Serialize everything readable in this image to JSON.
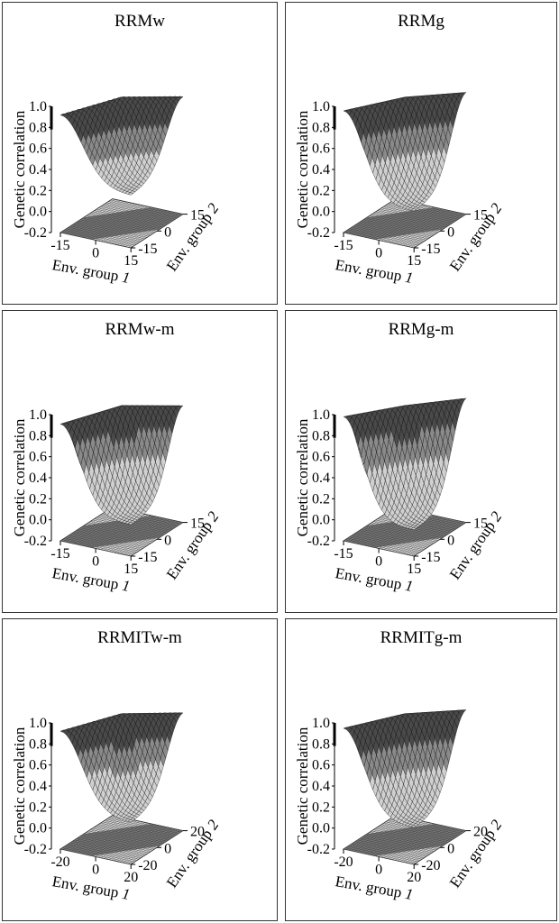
{
  "axis_labels": {
    "y": "Genetic correlation",
    "x1": "Env. group",
    "x1_num": "1",
    "x2": "Env. group",
    "x2_num": "2"
  },
  "chart_data": [
    {
      "type": "surface",
      "title": "RRMw",
      "ylim": [
        -0.2,
        1.0
      ],
      "yticks": [
        "-0.2",
        "0.0",
        "0.2",
        "0.4",
        "0.6",
        "0.8",
        "1.0"
      ],
      "x1_range": [
        -15,
        15
      ],
      "x1_ticks": [
        "-15",
        "0",
        "15"
      ],
      "x2_range": [
        -15,
        15
      ],
      "x2_ticks": [
        "-15",
        "0",
        "15"
      ],
      "peak_correlation": 1.0,
      "min_correlation": 0.3,
      "width": 0.45,
      "skew": 0.12
    },
    {
      "type": "surface",
      "title": "RRMg",
      "ylim": [
        -0.2,
        1.0
      ],
      "yticks": [
        "-0.2",
        "0.0",
        "0.2",
        "0.4",
        "0.6",
        "0.8",
        "1.0"
      ],
      "x1_range": [
        -15,
        15
      ],
      "x1_ticks": [
        "-15",
        "0",
        "15"
      ],
      "x2_range": [
        -15,
        15
      ],
      "x2_ticks": [
        "-15",
        "0",
        "15"
      ],
      "peak_correlation": 1.0,
      "min_correlation": 0.15,
      "width": 0.42,
      "skew": 0.05
    },
    {
      "type": "surface",
      "title": "RRMw-m",
      "ylim": [
        -0.2,
        1.0
      ],
      "yticks": [
        "-0.2",
        "0.0",
        "0.2",
        "0.4",
        "0.6",
        "0.8",
        "1.0"
      ],
      "x1_range": [
        -15,
        15
      ],
      "x1_ticks": [
        "-15",
        "0",
        "15"
      ],
      "x2_range": [
        -15,
        15
      ],
      "x2_ticks": [
        "-15",
        "0",
        "15"
      ],
      "peak_correlation": 1.0,
      "min_correlation": 0.1,
      "width": 0.4,
      "skew": 0.1
    },
    {
      "type": "surface",
      "title": "RRMg-m",
      "ylim": [
        -0.2,
        1.0
      ],
      "yticks": [
        "-0.2",
        "0.0",
        "0.2",
        "0.4",
        "0.6",
        "0.8",
        "1.0"
      ],
      "x1_range": [
        -15,
        15
      ],
      "x1_ticks": [
        "-15",
        "0",
        "15"
      ],
      "x2_range": [
        -15,
        15
      ],
      "x2_ticks": [
        "-15",
        "0",
        "15"
      ],
      "peak_correlation": 1.0,
      "min_correlation": 0.05,
      "width": 0.4,
      "skew": 0.02
    },
    {
      "type": "surface",
      "title": "RRMITw-m",
      "ylim": [
        -0.2,
        1.0
      ],
      "yticks": [
        "-0.2",
        "0.0",
        "0.2",
        "0.4",
        "0.6",
        "0.8",
        "1.0"
      ],
      "x1_range": [
        -20,
        20
      ],
      "x1_ticks": [
        "-20",
        "0",
        "20"
      ],
      "x2_range": [
        -20,
        20
      ],
      "x2_ticks": [
        "-20",
        "0",
        "20"
      ],
      "peak_correlation": 1.0,
      "min_correlation": 0.2,
      "width": 0.44,
      "skew": 0.1
    },
    {
      "type": "surface",
      "title": "RRMITg-m",
      "ylim": [
        -0.2,
        1.0
      ],
      "yticks": [
        "-0.2",
        "0.0",
        "0.2",
        "0.4",
        "0.6",
        "0.8",
        "1.0"
      ],
      "x1_range": [
        -20,
        20
      ],
      "x1_ticks": [
        "-20",
        "0",
        "20"
      ],
      "x2_range": [
        -20,
        20
      ],
      "x2_ticks": [
        "-20",
        "0",
        "20"
      ],
      "peak_correlation": 1.0,
      "min_correlation": 0.15,
      "width": 0.42,
      "skew": 0.06
    }
  ]
}
